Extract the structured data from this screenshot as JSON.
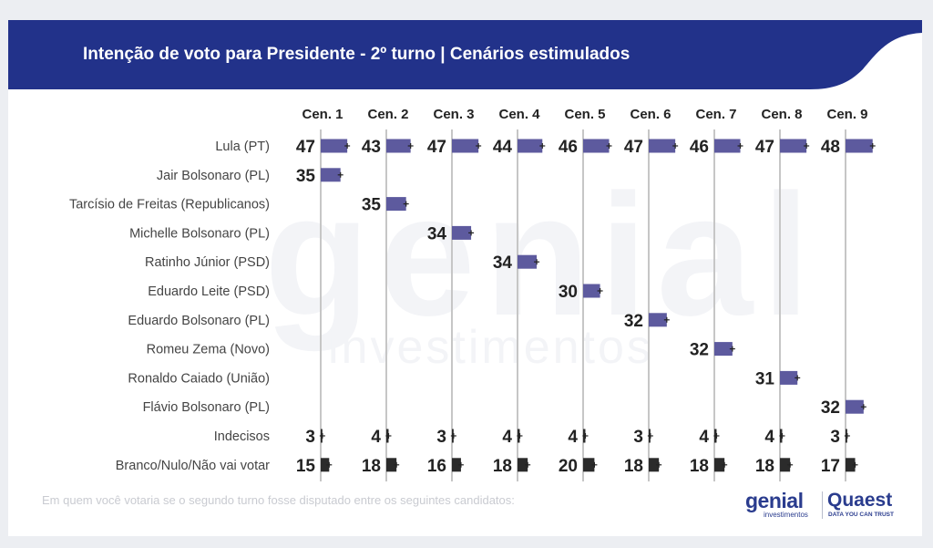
{
  "header": {
    "title": "Intenção de voto para Presidente - 2º turno | Cenários estimulados",
    "bar_color": "#22328a"
  },
  "watermark": {
    "brand": "genial",
    "tagline": "investimentos"
  },
  "chart_data": {
    "type": "bar",
    "title": "Intenção de voto para Presidente - 2º turno | Cenários estimulados",
    "scenarios": [
      "Cen. 1",
      "Cen. 2",
      "Cen. 3",
      "Cen. 4",
      "Cen. 5",
      "Cen. 6",
      "Cen. 7",
      "Cen. 8",
      "Cen. 9"
    ],
    "rows": [
      "Lula (PT)",
      "Jair Bolsonaro (PL)",
      "Tarcísio de Freitas (Republicanos)",
      "Michelle Bolsonaro (PL)",
      "Ratinho Júnior (PSD)",
      "Eduardo Leite (PSD)",
      "Eduardo Bolsonaro (PL)",
      "Romeu Zema (Novo)",
      "Ronaldo Caiado (União)",
      "Flávio Bolsonaro (PL)",
      "Indecisos",
      "Branco/Nulo/Não vai votar"
    ],
    "values": [
      [
        47,
        43,
        47,
        44,
        46,
        47,
        46,
        47,
        48
      ],
      [
        35,
        null,
        null,
        null,
        null,
        null,
        null,
        null,
        null
      ],
      [
        null,
        35,
        null,
        null,
        null,
        null,
        null,
        null,
        null
      ],
      [
        null,
        null,
        34,
        null,
        null,
        null,
        null,
        null,
        null
      ],
      [
        null,
        null,
        null,
        34,
        null,
        null,
        null,
        null,
        null
      ],
      [
        null,
        null,
        null,
        null,
        30,
        null,
        null,
        null,
        null
      ],
      [
        null,
        null,
        null,
        null,
        null,
        32,
        null,
        null,
        null
      ],
      [
        null,
        null,
        null,
        null,
        null,
        null,
        32,
        null,
        null
      ],
      [
        null,
        null,
        null,
        null,
        null,
        null,
        null,
        31,
        null
      ],
      [
        null,
        null,
        null,
        null,
        null,
        null,
        null,
        null,
        32
      ],
      [
        3,
        4,
        3,
        4,
        4,
        3,
        4,
        4,
        3
      ],
      [
        15,
        18,
        16,
        18,
        20,
        18,
        18,
        18,
        17
      ]
    ],
    "bar_colors": {
      "candidate": "#5d5a9e",
      "undecided_blank": "#2b2b2b"
    },
    "grid": true,
    "legend": "none"
  },
  "footnote": "Em quem você votaria se o segundo turno fosse disputado entre os seguintes candidatos:",
  "logos": {
    "genial_word": "genial",
    "genial_sub": "investimentos",
    "quaest_word": "Quaest",
    "quaest_sub": "DATA YOU CAN TRUST"
  }
}
